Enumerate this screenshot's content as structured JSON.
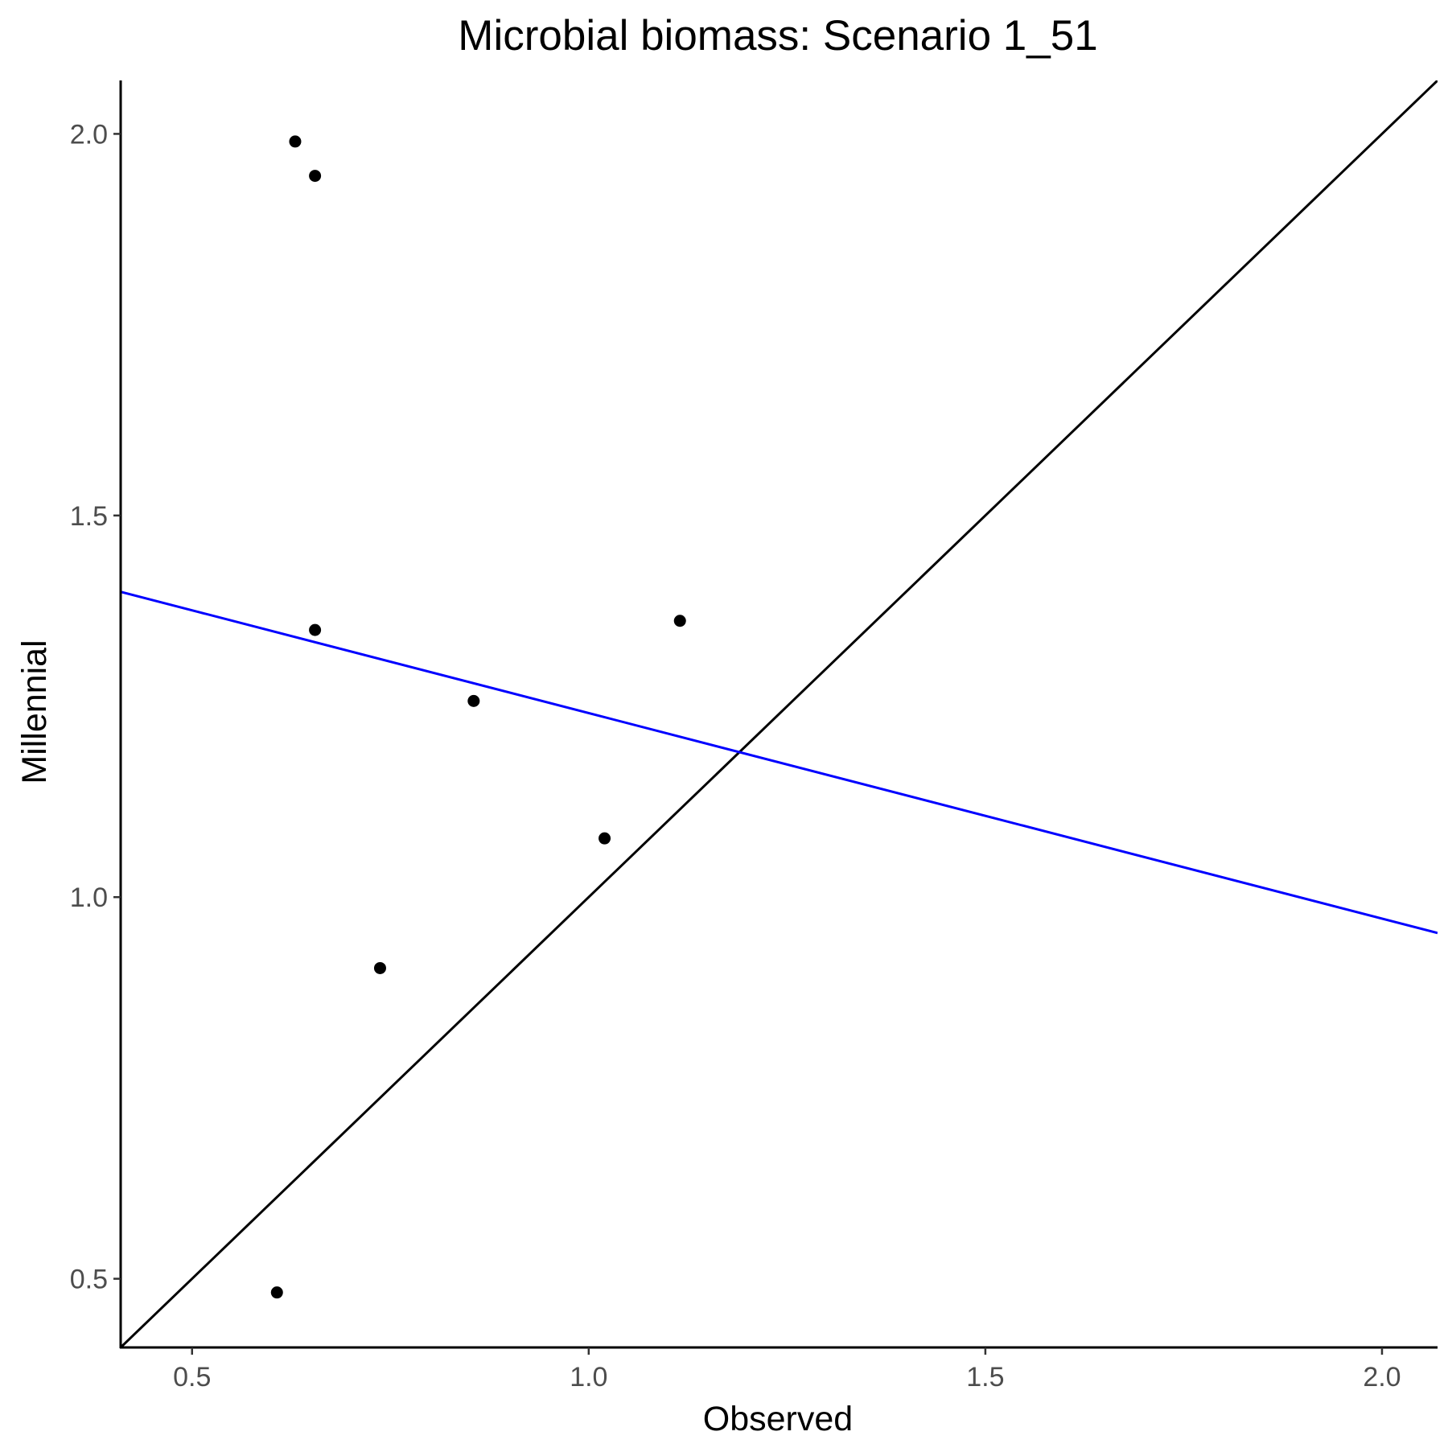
{
  "chart_data": {
    "type": "scatter",
    "title": "Microbial biomass: Scenario 1_51",
    "xlabel": "Observed",
    "ylabel": "Millennial",
    "xlim": [
      0.41,
      2.07
    ],
    "ylim": [
      0.41,
      2.07
    ],
    "x_ticks": [
      "0.5",
      "1.0",
      "1.5",
      "2.0"
    ],
    "y_ticks": [
      "0.5",
      "1.0",
      "1.5",
      "2.0"
    ],
    "grid": false,
    "points": [
      {
        "x": 0.63,
        "y": 1.99
      },
      {
        "x": 0.655,
        "y": 1.945
      },
      {
        "x": 0.655,
        "y": 1.35
      },
      {
        "x": 0.855,
        "y": 1.257
      },
      {
        "x": 1.115,
        "y": 1.362
      },
      {
        "x": 1.02,
        "y": 1.077
      },
      {
        "x": 0.737,
        "y": 0.907
      },
      {
        "x": 0.607,
        "y": 0.482
      }
    ],
    "lines": [
      {
        "kind": "identity",
        "color": "#000000",
        "x": [
          0.41,
          2.07
        ],
        "y": [
          0.41,
          2.07
        ]
      },
      {
        "kind": "regression",
        "color": "#0000ff",
        "x": [
          0.41,
          2.07
        ],
        "y": [
          1.4,
          0.953
        ]
      }
    ]
  }
}
